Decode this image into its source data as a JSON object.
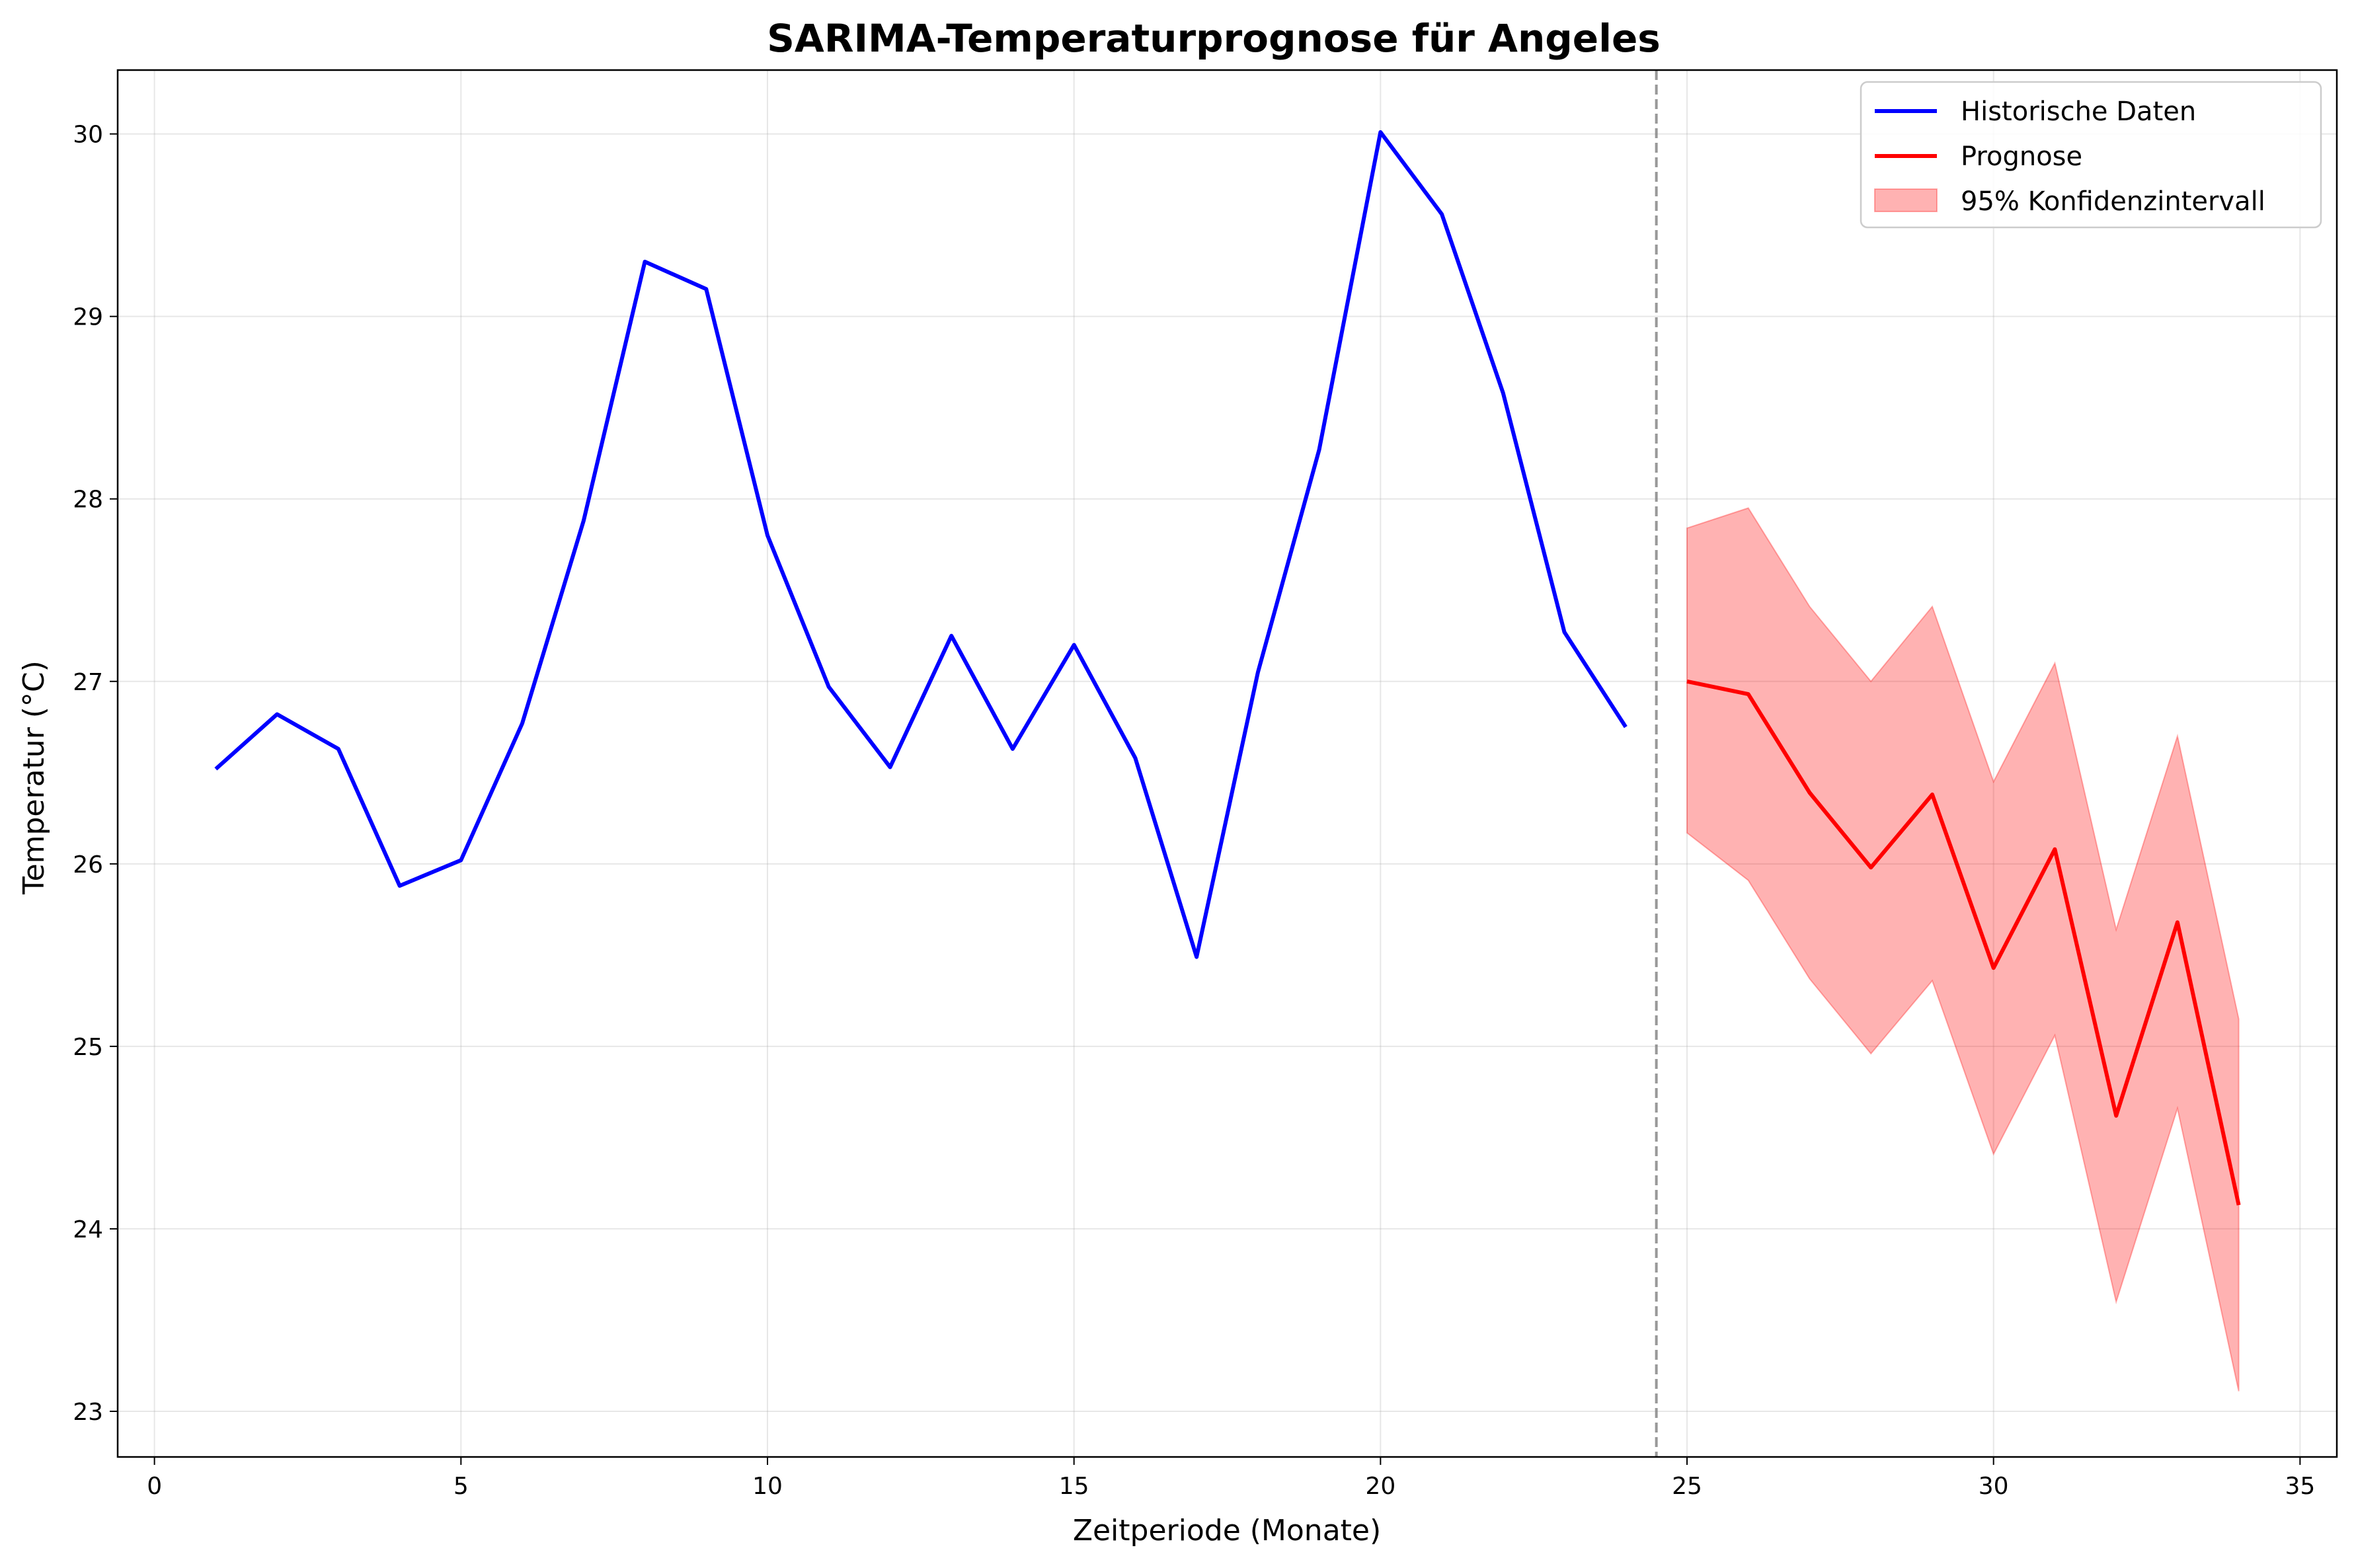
{
  "chart_data": {
    "type": "line",
    "title": "SARIMA-Temperaturprognose für Angeles",
    "xlabel": "Zeitperiode (Monate)",
    "ylabel": "Temperatur (°C)",
    "xlim": [
      -0.6,
      35.6
    ],
    "ylim": [
      22.75,
      30.35
    ],
    "xticks": [
      0,
      5,
      10,
      15,
      20,
      25,
      30,
      35
    ],
    "yticks": [
      23,
      24,
      25,
      26,
      27,
      28,
      29,
      30
    ],
    "grid": true,
    "legend_position": "top-right",
    "forecast_split_x": 24.5,
    "series": [
      {
        "name": "Historische Daten",
        "color": "#0000ff",
        "x": [
          1,
          2,
          3,
          4,
          5,
          6,
          7,
          8,
          9,
          10,
          11,
          12,
          13,
          14,
          15,
          16,
          17,
          18,
          19,
          20,
          21,
          22,
          23,
          24
        ],
        "values": [
          26.52,
          26.82,
          26.63,
          25.88,
          26.02,
          26.77,
          27.88,
          29.3,
          29.15,
          27.8,
          26.97,
          26.53,
          27.25,
          26.63,
          27.2,
          26.58,
          25.49,
          27.05,
          28.27,
          30.01,
          29.56,
          28.58,
          27.27,
          26.75
        ]
      },
      {
        "name": "Prognose",
        "color": "#ff0000",
        "x": [
          25,
          26,
          27,
          28,
          29,
          30,
          31,
          32,
          33,
          34
        ],
        "values": [
          27.0,
          26.93,
          26.39,
          25.98,
          26.38,
          25.43,
          26.08,
          24.62,
          25.68,
          24.13
        ]
      }
    ],
    "confidence_interval": {
      "name": "95% Konfidenzintervall",
      "color": "#ff0000",
      "x": [
        25,
        26,
        27,
        28,
        29,
        30,
        31,
        32,
        33,
        34
      ],
      "lower": [
        26.17,
        25.91,
        25.37,
        24.96,
        25.36,
        24.41,
        25.06,
        23.6,
        24.66,
        23.11
      ],
      "upper": [
        27.84,
        27.95,
        27.41,
        27.0,
        27.41,
        26.45,
        27.1,
        25.64,
        26.7,
        25.15
      ]
    }
  }
}
